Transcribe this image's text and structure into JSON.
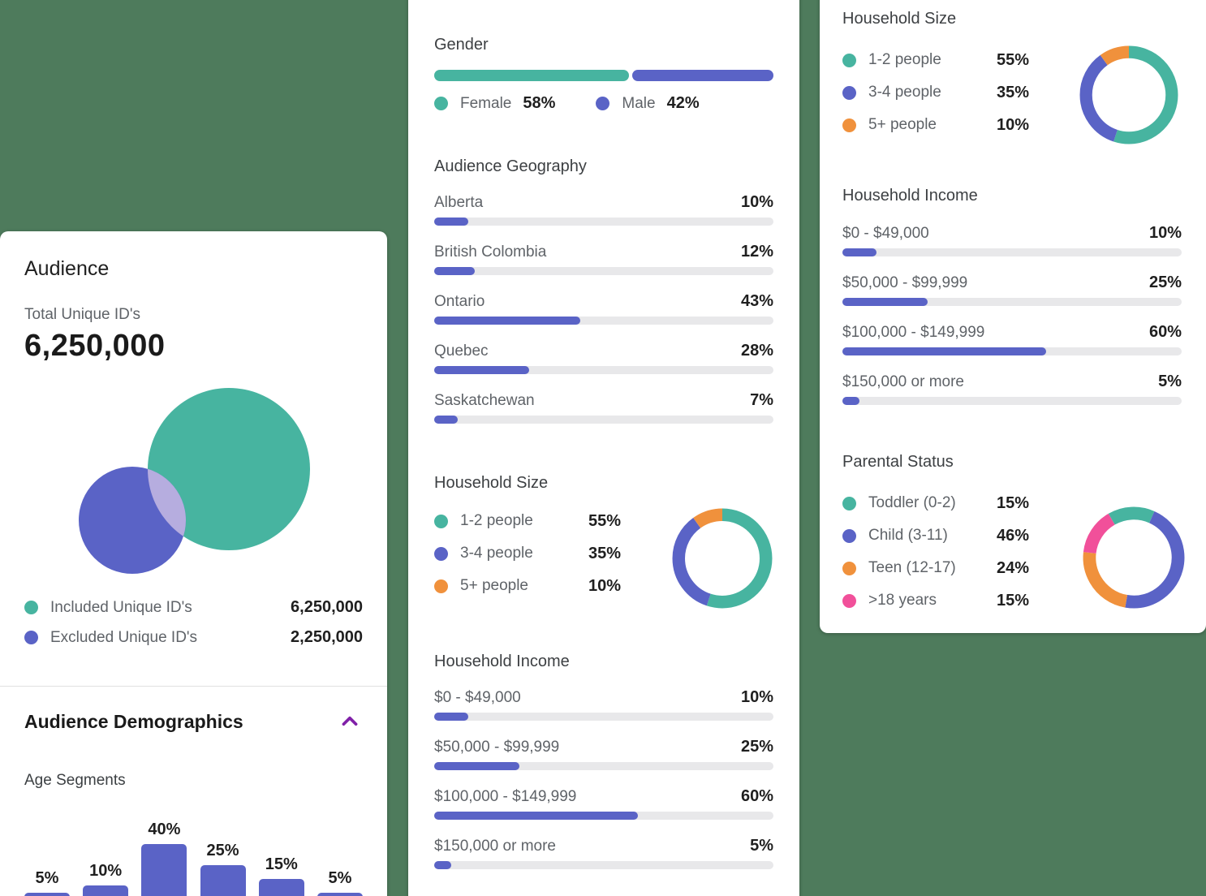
{
  "colors": {
    "background": "#4e7b5c",
    "teal": "#47b4a0",
    "purple": "#5a63c6",
    "orange": "#f0913c",
    "pink": "#f1509a",
    "track": "#e8e8ea",
    "venn_overlap": "#b6addf",
    "chevron": "#8020a8"
  },
  "left_card": {
    "title": "Audience",
    "total": {
      "label": "Total Unique ID's",
      "value": "6,250,000"
    },
    "legend": [
      {
        "label": "Included Unique ID's",
        "value": "6,250,000",
        "color": "teal"
      },
      {
        "label": "Excluded Unique ID's",
        "value": "2,250,000",
        "color": "purple"
      }
    ],
    "demographics": {
      "title": "Audience Demographics",
      "age": {
        "title": "Age Segments",
        "chart": {
          "type": "bar",
          "labels": [
            "5%",
            "10%",
            "40%",
            "25%",
            "15%",
            "5%"
          ],
          "values": [
            5,
            10,
            40,
            25,
            15,
            5
          ]
        }
      }
    }
  },
  "gender": {
    "title": "Gender",
    "chart_type": "stacked-bar",
    "segments": [
      {
        "label": "Female",
        "value": 58,
        "display": "58%",
        "color": "teal"
      },
      {
        "label": "Male",
        "value": 42,
        "display": "42%",
        "color": "purple"
      }
    ]
  },
  "geography": {
    "title": "Audience Geography",
    "chart_type": "bar",
    "rows": [
      {
        "label": "Alberta",
        "value": 10,
        "display": "10%"
      },
      {
        "label": "British Colombia",
        "value": 12,
        "display": "12%"
      },
      {
        "label": "Ontario",
        "value": 43,
        "display": "43%"
      },
      {
        "label": "Quebec",
        "value": 28,
        "display": "28%"
      },
      {
        "label": "Saskatchewan",
        "value": 7,
        "display": "7%"
      }
    ]
  },
  "household_size": {
    "title": "Household Size",
    "chart_type": "donut",
    "segments": [
      {
        "label": "1-2 people",
        "value": 55,
        "display": "55%",
        "color": "teal"
      },
      {
        "label": "3-4 people",
        "value": 35,
        "display": "35%",
        "color": "purple"
      },
      {
        "label": "5+ people",
        "value": 10,
        "display": "10%",
        "color": "orange"
      }
    ]
  },
  "household_income": {
    "title": "Household Income",
    "chart_type": "bar",
    "rows": [
      {
        "label": "$0 - $49,000",
        "value": 10,
        "display": "10%"
      },
      {
        "label": "$50,000 - $99,999",
        "value": 25,
        "display": "25%"
      },
      {
        "label": "$100,000 - $149,999",
        "value": 60,
        "display": "60%"
      },
      {
        "label": "$150,000 or more",
        "value": 5,
        "display": "5%"
      }
    ]
  },
  "parental_status": {
    "title": "Parental Status",
    "chart_type": "donut",
    "segments": [
      {
        "label": "Toddler (0-2)",
        "value": 15,
        "display": "15%",
        "color": "teal"
      },
      {
        "label": "Child (3-11)",
        "value": 46,
        "display": "46%",
        "color": "purple"
      },
      {
        "label": "Teen (12-17)",
        "value": 24,
        "display": "24%",
        "color": "orange"
      },
      {
        "label": ">18 years",
        "value": 15,
        "display": "15%",
        "color": "pink"
      }
    ]
  }
}
